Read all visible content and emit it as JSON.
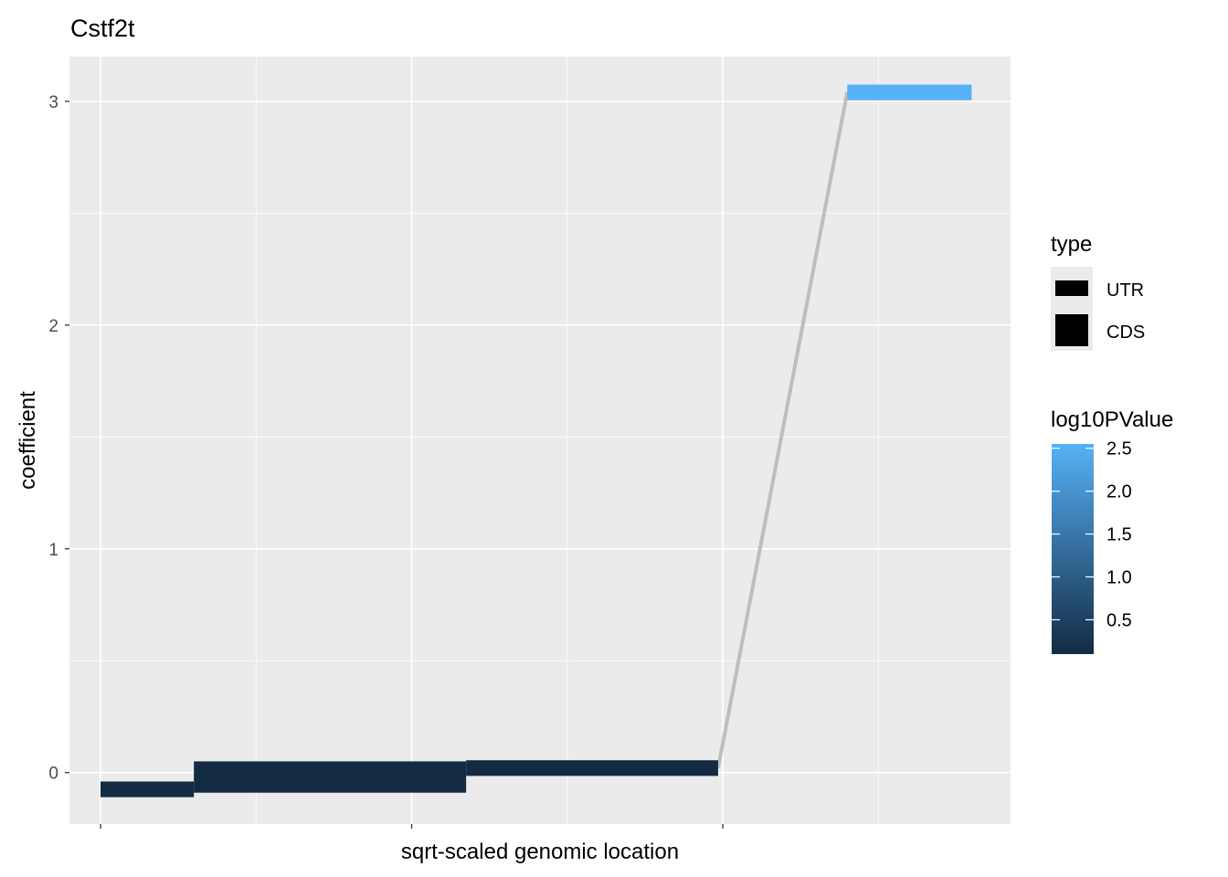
{
  "chart_data": {
    "type": "line",
    "title": "Cstf2t",
    "xlabel": "sqrt-scaled genomic location",
    "ylabel": "coefficient",
    "ylim": [
      -0.23,
      3.2
    ],
    "y_ticks": [
      0,
      1,
      2,
      3
    ],
    "x_tick_labels": [],
    "grid": true,
    "segments": [
      {
        "type": "UTR",
        "x_start": 0.0,
        "x_end": 0.6,
        "coefficient": -0.075,
        "log10PValue": 0.1
      },
      {
        "type": "CDS",
        "x_start": 0.6,
        "x_end": 2.35,
        "coefficient": -0.02,
        "log10PValue": 0.1
      },
      {
        "type": "UTR",
        "x_start": 2.35,
        "x_end": 3.97,
        "coefficient": 0.02,
        "log10PValue": 0.1
      },
      {
        "type": "UTR",
        "x_start": 4.8,
        "x_end": 5.6,
        "coefficient": 3.04,
        "log10PValue": 2.55
      }
    ],
    "connector_line": {
      "x": [
        3.97,
        4.8
      ],
      "y": [
        0.02,
        3.04
      ],
      "color": "#bebebe"
    },
    "legend_type": {
      "title": "type",
      "entries": [
        "UTR",
        "CDS"
      ]
    },
    "legend_color": {
      "title": "log10PValue",
      "min": 0.1,
      "max": 2.55,
      "ticks": [
        "0.5",
        "1.0",
        "1.5",
        "2.0",
        "2.5"
      ],
      "low_color": "#132B43",
      "high_color": "#56B1F7"
    },
    "colors": {
      "panel_background": "#ebebeb",
      "grid_major": "#ffffff"
    }
  }
}
